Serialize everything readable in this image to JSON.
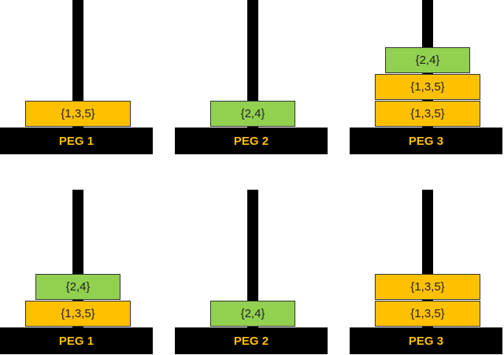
{
  "rows": [
    {
      "pegs": [
        {
          "label": "PEG 1",
          "disks": [
            {
              "label": "{1,3,5}",
              "color": "#ffc000"
            }
          ]
        },
        {
          "label": "PEG 2",
          "disks": [
            {
              "label": "{2,4}",
              "color": "#92d050"
            }
          ]
        },
        {
          "label": "PEG 3",
          "disks": [
            {
              "label": "{1,3,5}",
              "color": "#ffc000"
            },
            {
              "label": "{1,3,5}",
              "color": "#ffc000"
            },
            {
              "label": "{2,4}",
              "color": "#92d050"
            }
          ]
        }
      ]
    },
    {
      "pegs": [
        {
          "label": "PEG 1",
          "disks": [
            {
              "label": "{1,3,5}",
              "color": "#ffc000"
            },
            {
              "label": "{2,4}",
              "color": "#92d050"
            }
          ]
        },
        {
          "label": "PEG 2",
          "disks": [
            {
              "label": "{2,4}",
              "color": "#92d050"
            }
          ]
        },
        {
          "label": "PEG 3",
          "disks": [
            {
              "label": "{1,3,5}",
              "color": "#ffc000"
            },
            {
              "label": "{1,3,5}",
              "color": "#ffc000"
            }
          ]
        }
      ]
    }
  ]
}
